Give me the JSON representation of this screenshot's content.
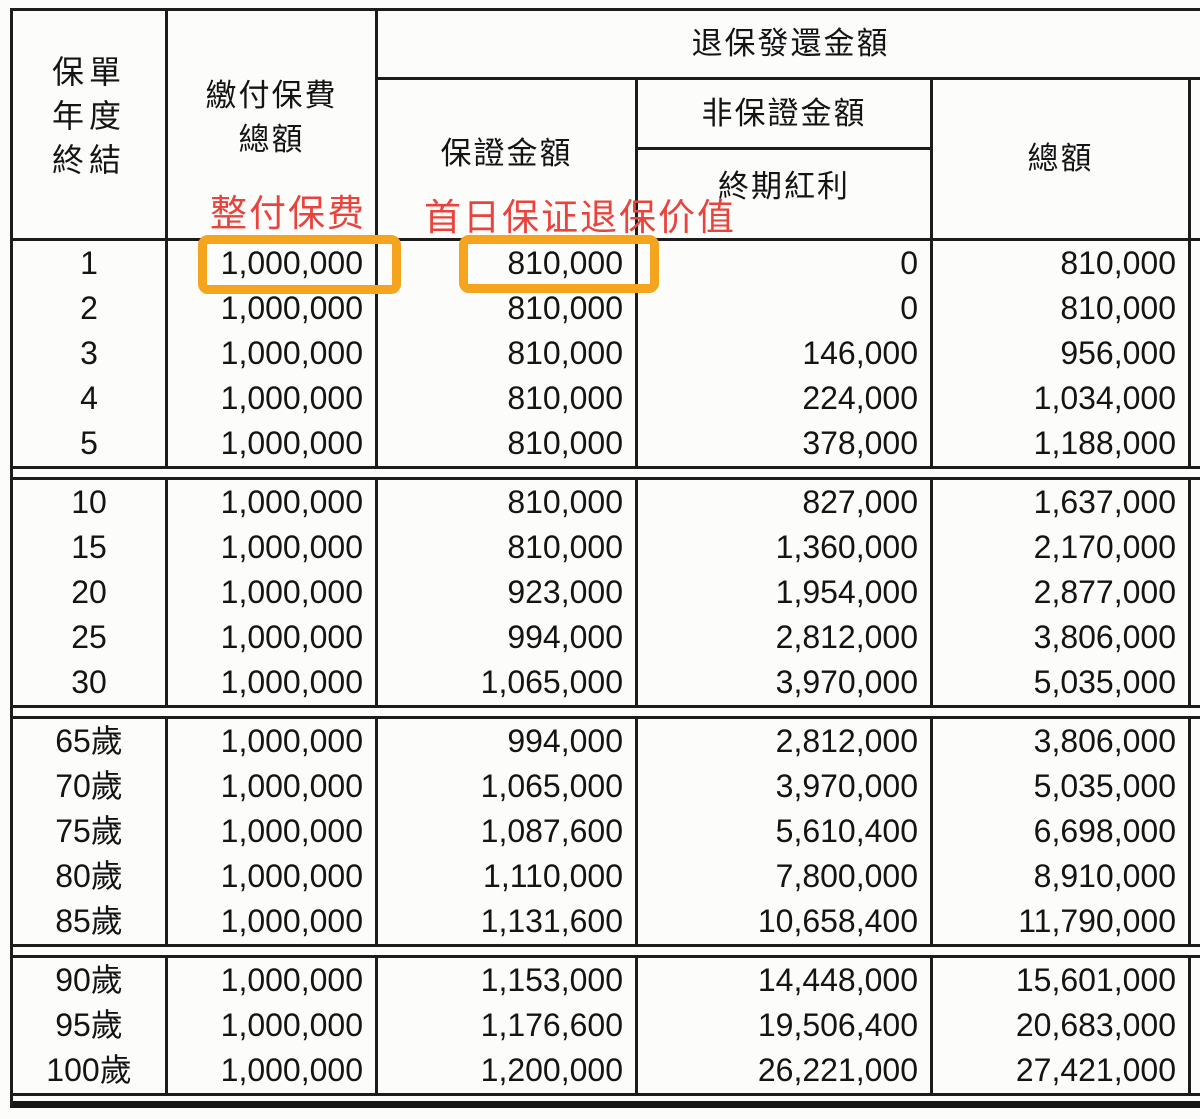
{
  "table": {
    "header": {
      "col_policy_year_lines": [
        "保單",
        "年度",
        "終結"
      ],
      "col_premium_lines": [
        "繳付保費",
        "總額"
      ],
      "surrender_group": "退保發還金額",
      "col_guaranteed": "保證金額",
      "non_guaranteed_group": "非保證金額",
      "col_terminal_dividend": "終期紅利",
      "col_total": "總額"
    },
    "groups": [
      [
        [
          "1",
          "1,000,000",
          "810,000",
          "0",
          "810,000"
        ],
        [
          "2",
          "1,000,000",
          "810,000",
          "0",
          "810,000"
        ],
        [
          "3",
          "1,000,000",
          "810,000",
          "146,000",
          "956,000"
        ],
        [
          "4",
          "1,000,000",
          "810,000",
          "224,000",
          "1,034,000"
        ],
        [
          "5",
          "1,000,000",
          "810,000",
          "378,000",
          "1,188,000"
        ]
      ],
      [
        [
          "10",
          "1,000,000",
          "810,000",
          "827,000",
          "1,637,000"
        ],
        [
          "15",
          "1,000,000",
          "810,000",
          "1,360,000",
          "2,170,000"
        ],
        [
          "20",
          "1,000,000",
          "923,000",
          "1,954,000",
          "2,877,000"
        ],
        [
          "25",
          "1,000,000",
          "994,000",
          "2,812,000",
          "3,806,000"
        ],
        [
          "30",
          "1,000,000",
          "1,065,000",
          "3,970,000",
          "5,035,000"
        ]
      ],
      [
        [
          "65歲",
          "1,000,000",
          "994,000",
          "2,812,000",
          "3,806,000"
        ],
        [
          "70歲",
          "1,000,000",
          "1,065,000",
          "3,970,000",
          "5,035,000"
        ],
        [
          "75歲",
          "1,000,000",
          "1,087,600",
          "5,610,400",
          "6,698,000"
        ],
        [
          "80歲",
          "1,000,000",
          "1,110,000",
          "7,800,000",
          "8,910,000"
        ],
        [
          "85歲",
          "1,000,000",
          "1,131,600",
          "10,658,400",
          "11,790,000"
        ]
      ],
      [
        [
          "90歲",
          "1,000,000",
          "1,153,000",
          "14,448,000",
          "15,601,000"
        ],
        [
          "95歲",
          "1,000,000",
          "1,176,600",
          "19,506,400",
          "20,683,000"
        ],
        [
          "100歲",
          "1,000,000",
          "1,200,000",
          "26,221,000",
          "27,421,000"
        ]
      ]
    ]
  },
  "annotations": {
    "premium_note": "整付保费",
    "day1_value_note": "首日保证退保价值",
    "red_color": "#e8433d",
    "highlight_color": "#f4a41d"
  },
  "colors": {
    "border": "#1c1c1c",
    "text": "#141414",
    "background": "#fcfcfb"
  }
}
